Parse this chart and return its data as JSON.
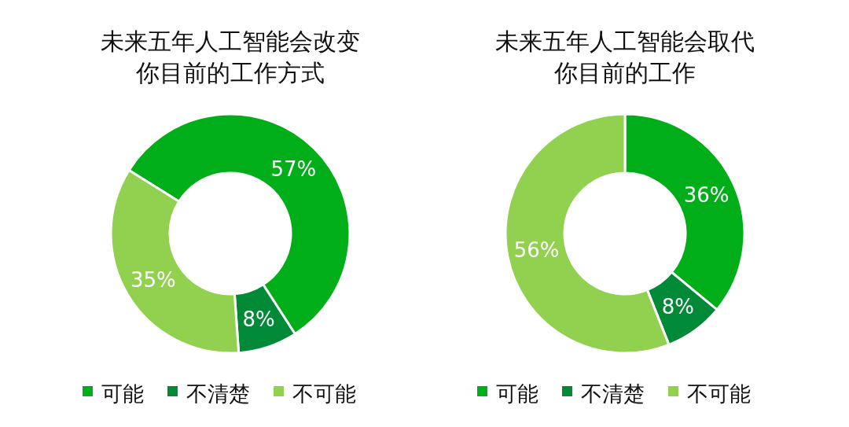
{
  "chart_data": [
    {
      "type": "donut",
      "title": "未来五年人工智能会改变你目前的工作方式",
      "categories": [
        "可能",
        "不清楚",
        "不可能"
      ],
      "values": [
        57,
        8,
        35
      ],
      "value_labels": [
        "57%",
        "8%",
        "35%"
      ],
      "colors": [
        "#00ae1a",
        "#008a38",
        "#92d050"
      ],
      "legend": "bottom"
    },
    {
      "type": "donut",
      "title": "未来五年人工智能会取代你目前的工作",
      "categories": [
        "可能",
        "不清楚",
        "不可能"
      ],
      "values": [
        36,
        8,
        56
      ],
      "value_labels": [
        "36%",
        "8%",
        "56%"
      ],
      "colors": [
        "#00ae1a",
        "#008a38",
        "#92d050"
      ],
      "legend": "bottom"
    }
  ]
}
